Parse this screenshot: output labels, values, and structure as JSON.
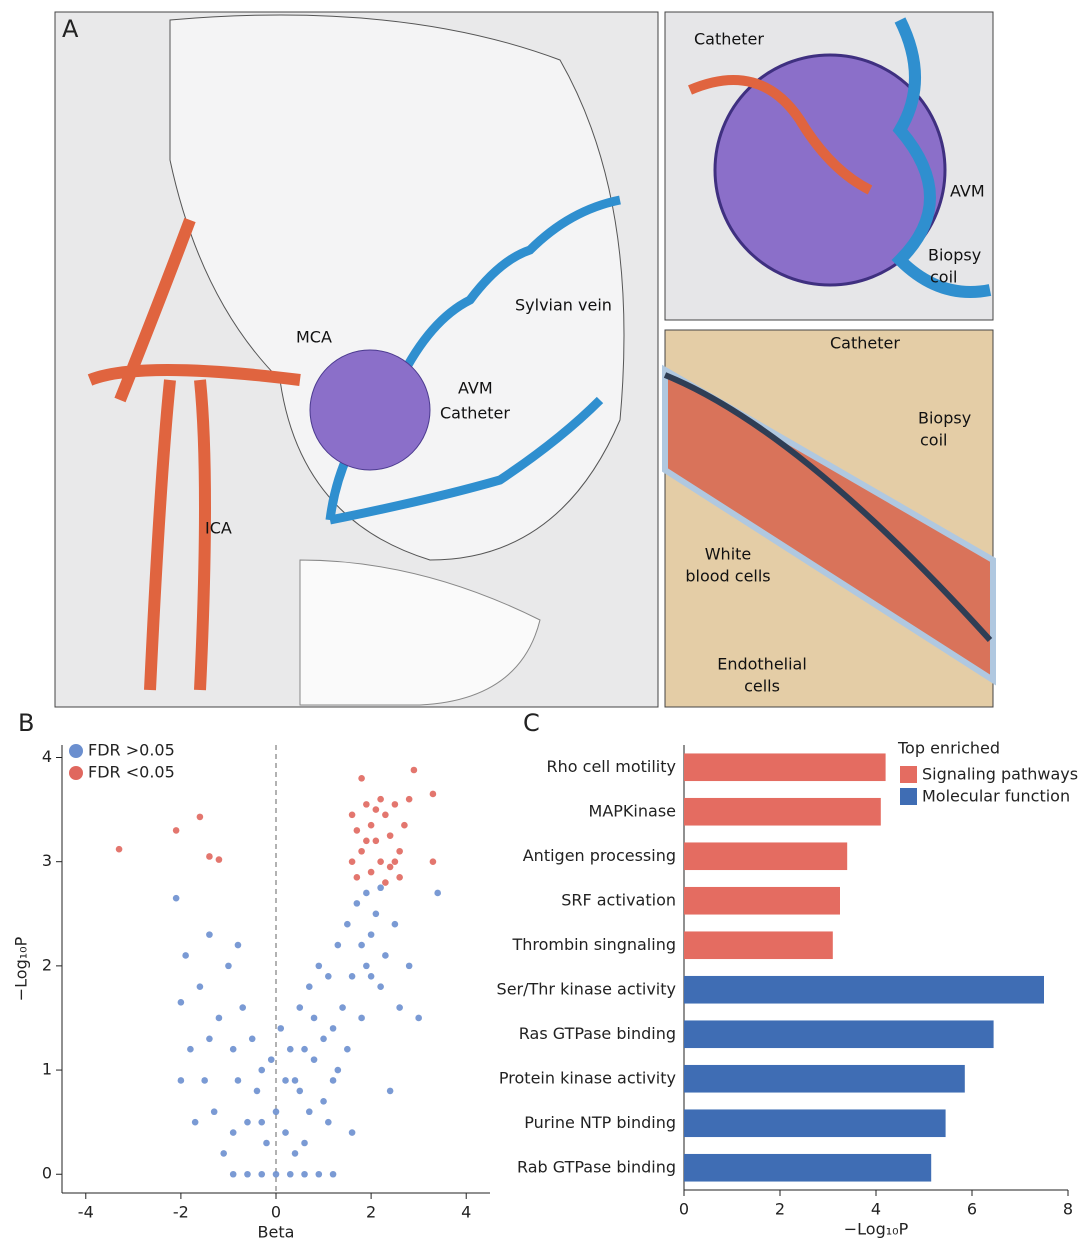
{
  "panel_labels": [
    "A",
    "B",
    "C"
  ],
  "illustration": {
    "labels": [
      "Catheter",
      "AVM",
      "Biopsy",
      "coil",
      "Catheter",
      "Biopsy",
      "coil",
      "White",
      "blood cells",
      "Endothelial",
      "cells",
      "MCA",
      "AVM",
      "Catheter",
      "Sylvian vein",
      "ICA"
    ]
  },
  "chart_data": [
    {
      "type": "scatter",
      "xlabel": "Beta",
      "ylabel": "−Log₁₀P",
      "xlim": [
        -4.5,
        4.5
      ],
      "ylim": [
        -0.18,
        4.12
      ],
      "xticks": [
        -4,
        -2,
        0,
        2,
        4
      ],
      "yticks": [
        0,
        1,
        2,
        3,
        4
      ],
      "vline": 0,
      "legend": "upper left",
      "series": [
        {
          "name": "FDR >0.05",
          "color": "#6b8fcf",
          "x": [
            -2.1,
            -2.0,
            -1.9,
            -1.8,
            -1.6,
            -1.5,
            -1.4,
            -1.3,
            -1.2,
            -1.1,
            -1.0,
            -0.9,
            -0.9,
            -0.8,
            -0.8,
            -0.7,
            -0.6,
            -0.5,
            -0.4,
            -0.3,
            -0.2,
            -0.1,
            0.0,
            0.1,
            0.2,
            0.3,
            0.4,
            0.5,
            0.6,
            0.7,
            0.8,
            0.9,
            1.0,
            1.1,
            1.2,
            1.3,
            1.4,
            1.5,
            1.6,
            1.7,
            1.8,
            1.9,
            2.0,
            2.1,
            2.2,
            2.3,
            2.5,
            2.6,
            2.8,
            3.0,
            3.4,
            0.5,
            0.8,
            1.0,
            1.2,
            -0.3,
            0.2,
            0.6,
            1.5,
            1.8,
            -0.9,
            -0.6,
            -0.3,
            0.0,
            0.3,
            0.6,
            0.9,
            1.2,
            2.0,
            2.2,
            1.9,
            1.1,
            0.4,
            -1.7,
            -1.4,
            -2.0,
            0.7,
            1.6,
            2.4,
            1.3
          ],
          "values": [
            2.65,
            1.65,
            2.1,
            1.2,
            1.8,
            0.9,
            2.3,
            0.6,
            1.5,
            0.2,
            2.0,
            1.2,
            0.4,
            2.2,
            0.9,
            1.6,
            0.5,
            1.3,
            0.8,
            1.0,
            0.3,
            1.1,
            0.6,
            1.4,
            0.4,
            1.2,
            0.9,
            1.6,
            0.3,
            1.8,
            1.1,
            2.0,
            0.7,
            1.9,
            1.4,
            2.2,
            1.6,
            2.4,
            1.9,
            2.6,
            2.2,
            2.7,
            2.3,
            2.5,
            1.8,
            2.1,
            2.4,
            1.6,
            2.0,
            1.5,
            2.7,
            0.8,
            1.5,
            1.3,
            0.9,
            0.5,
            0.9,
            1.2,
            1.2,
            1.5,
            0,
            0,
            0,
            0,
            0,
            0,
            0,
            0,
            1.9,
            2.75,
            2.0,
            0.5,
            0.2,
            0.5,
            1.3,
            0.9,
            0.6,
            0.4,
            0.8,
            1.0
          ]
        },
        {
          "name": "FDR <0.05",
          "color": "#e0675e",
          "x": [
            -3.3,
            -2.1,
            -1.6,
            -1.4,
            -1.2,
            1.8,
            2.9,
            3.3,
            3.3,
            2.2,
            1.6,
            1.7,
            1.8,
            1.9,
            2.0,
            2.1,
            2.2,
            2.3,
            2.4,
            2.5,
            2.6,
            2.7,
            2.8,
            2.0,
            1.7,
            2.4,
            1.6,
            2.1,
            2.6,
            1.9,
            2.5,
            2.3
          ],
          "values": [
            3.12,
            3.3,
            3.43,
            3.05,
            3.02,
            3.8,
            3.88,
            3.65,
            3.0,
            3.6,
            3.45,
            3.3,
            3.1,
            3.55,
            3.35,
            3.2,
            3.0,
            3.45,
            3.25,
            3.55,
            3.1,
            3.35,
            3.6,
            2.9,
            2.85,
            2.95,
            3.0,
            3.5,
            2.85,
            3.2,
            3.0,
            2.8
          ]
        }
      ]
    },
    {
      "type": "barh",
      "xlabel": "−Log₁₀P",
      "legend_title": "Top enriched",
      "legend": "upper right",
      "xlim": [
        0,
        8
      ],
      "xticks": [
        0,
        2,
        4,
        6,
        8
      ],
      "categories": [
        "Rho cell motility",
        "MAPKinase",
        "Antigen processing",
        "SRF activation",
        "Thrombin singnaling",
        "Ser/Thr kinase activity",
        "Ras GTPase binding",
        "Protein kinase activity",
        "Purine NTP binding",
        "Rab GTPase binding"
      ],
      "series": [
        {
          "name": "Signaling pathways",
          "color": "#e46c61",
          "values": [
            4.2,
            4.1,
            3.4,
            3.25,
            3.1,
            null,
            null,
            null,
            null,
            null
          ]
        },
        {
          "name": "Molecular function",
          "color": "#3f6db4",
          "values": [
            null,
            null,
            null,
            null,
            null,
            7.5,
            6.45,
            5.85,
            5.45,
            5.15
          ]
        }
      ]
    }
  ]
}
